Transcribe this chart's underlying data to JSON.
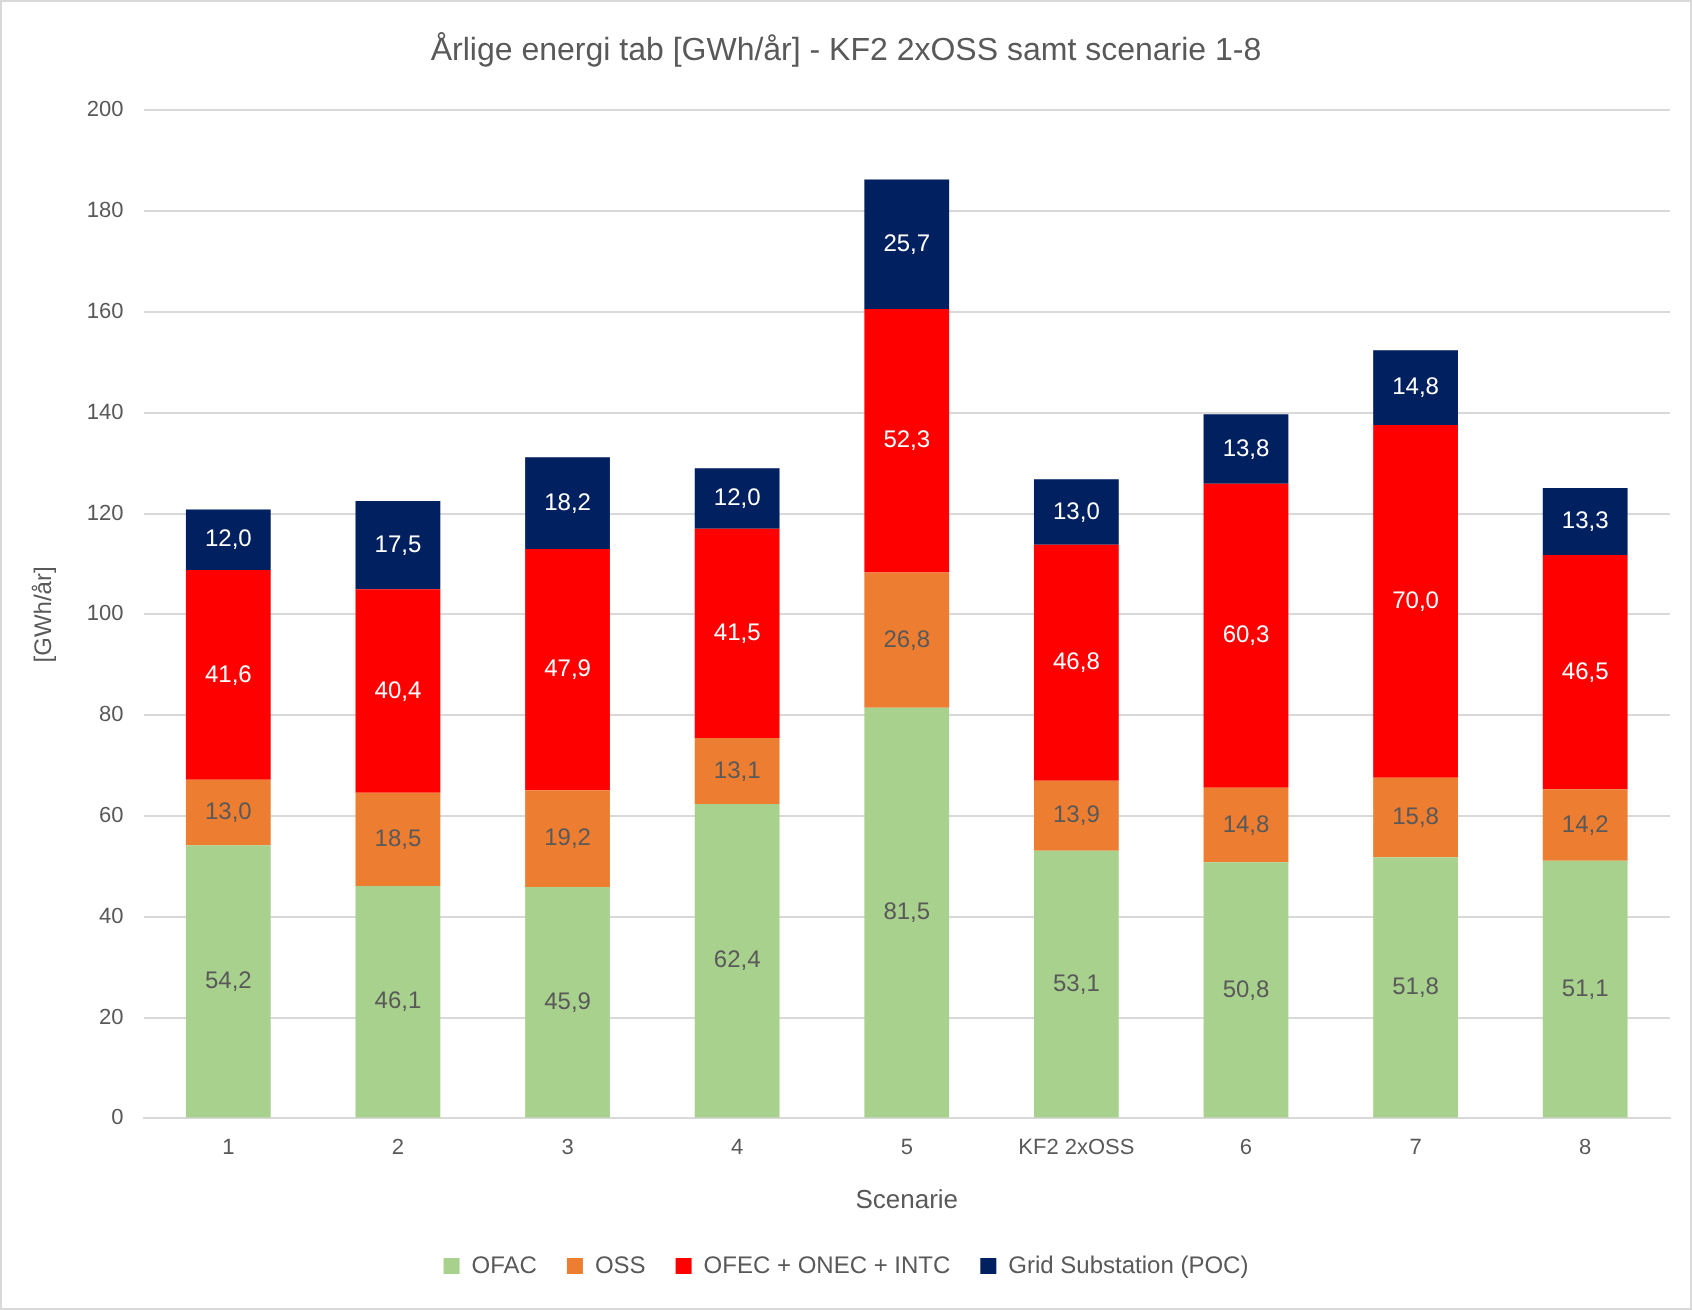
{
  "chart_data": {
    "type": "bar",
    "stacked": true,
    "title": "Årlige energi tab [GWh/år] - KF2 2xOSS samt scenarie 1-8",
    "xlabel": "Scenarie",
    "ylabel": "[GWh/år]",
    "categories": [
      "1",
      "2",
      "3",
      "4",
      "5",
      "KF2 2xOSS",
      "6",
      "7",
      "8"
    ],
    "series": [
      {
        "name": "OFAC",
        "color": "#a9d18e",
        "values": [
          54.2,
          46.1,
          45.9,
          62.4,
          81.5,
          53.1,
          50.8,
          51.8,
          51.1
        ],
        "value_labels": [
          "54,2",
          "46,1",
          "45,9",
          "62,4",
          "81,5",
          "53,1",
          "50,8",
          "51,8",
          "51,1"
        ]
      },
      {
        "name": "OSS",
        "color": "#ed7d31",
        "values": [
          13.0,
          18.5,
          19.2,
          13.1,
          26.8,
          13.9,
          14.8,
          15.8,
          14.2
        ],
        "value_labels": [
          "13,0",
          "18,5",
          "19,2",
          "13,1",
          "26,8",
          "13,9",
          "14,8",
          "15,8",
          "14,2"
        ]
      },
      {
        "name": "OFEC + ONEC + INTC",
        "color": "#ff0000",
        "values": [
          41.6,
          40.4,
          47.9,
          41.5,
          52.3,
          46.8,
          60.3,
          70.0,
          46.5
        ],
        "value_labels": [
          "41,6",
          "40,4",
          "47,9",
          "41,5",
          "52,3",
          "46,8",
          "60,3",
          "70,0",
          "46,5"
        ]
      },
      {
        "name": "Grid Substation (POC)",
        "color": "#002060",
        "values": [
          12.0,
          17.5,
          18.2,
          12.0,
          25.7,
          13.0,
          13.8,
          14.8,
          13.3
        ],
        "value_labels": [
          "12,0",
          "17,5",
          "18,2",
          "12,0",
          "25,7",
          "13,0",
          "13,8",
          "14,8",
          "13,3"
        ]
      }
    ],
    "ylim": [
      0,
      200
    ],
    "yticks": [
      0,
      20,
      40,
      60,
      80,
      100,
      120,
      140,
      160,
      180,
      200
    ],
    "grid": "y",
    "legend": "bottom"
  }
}
